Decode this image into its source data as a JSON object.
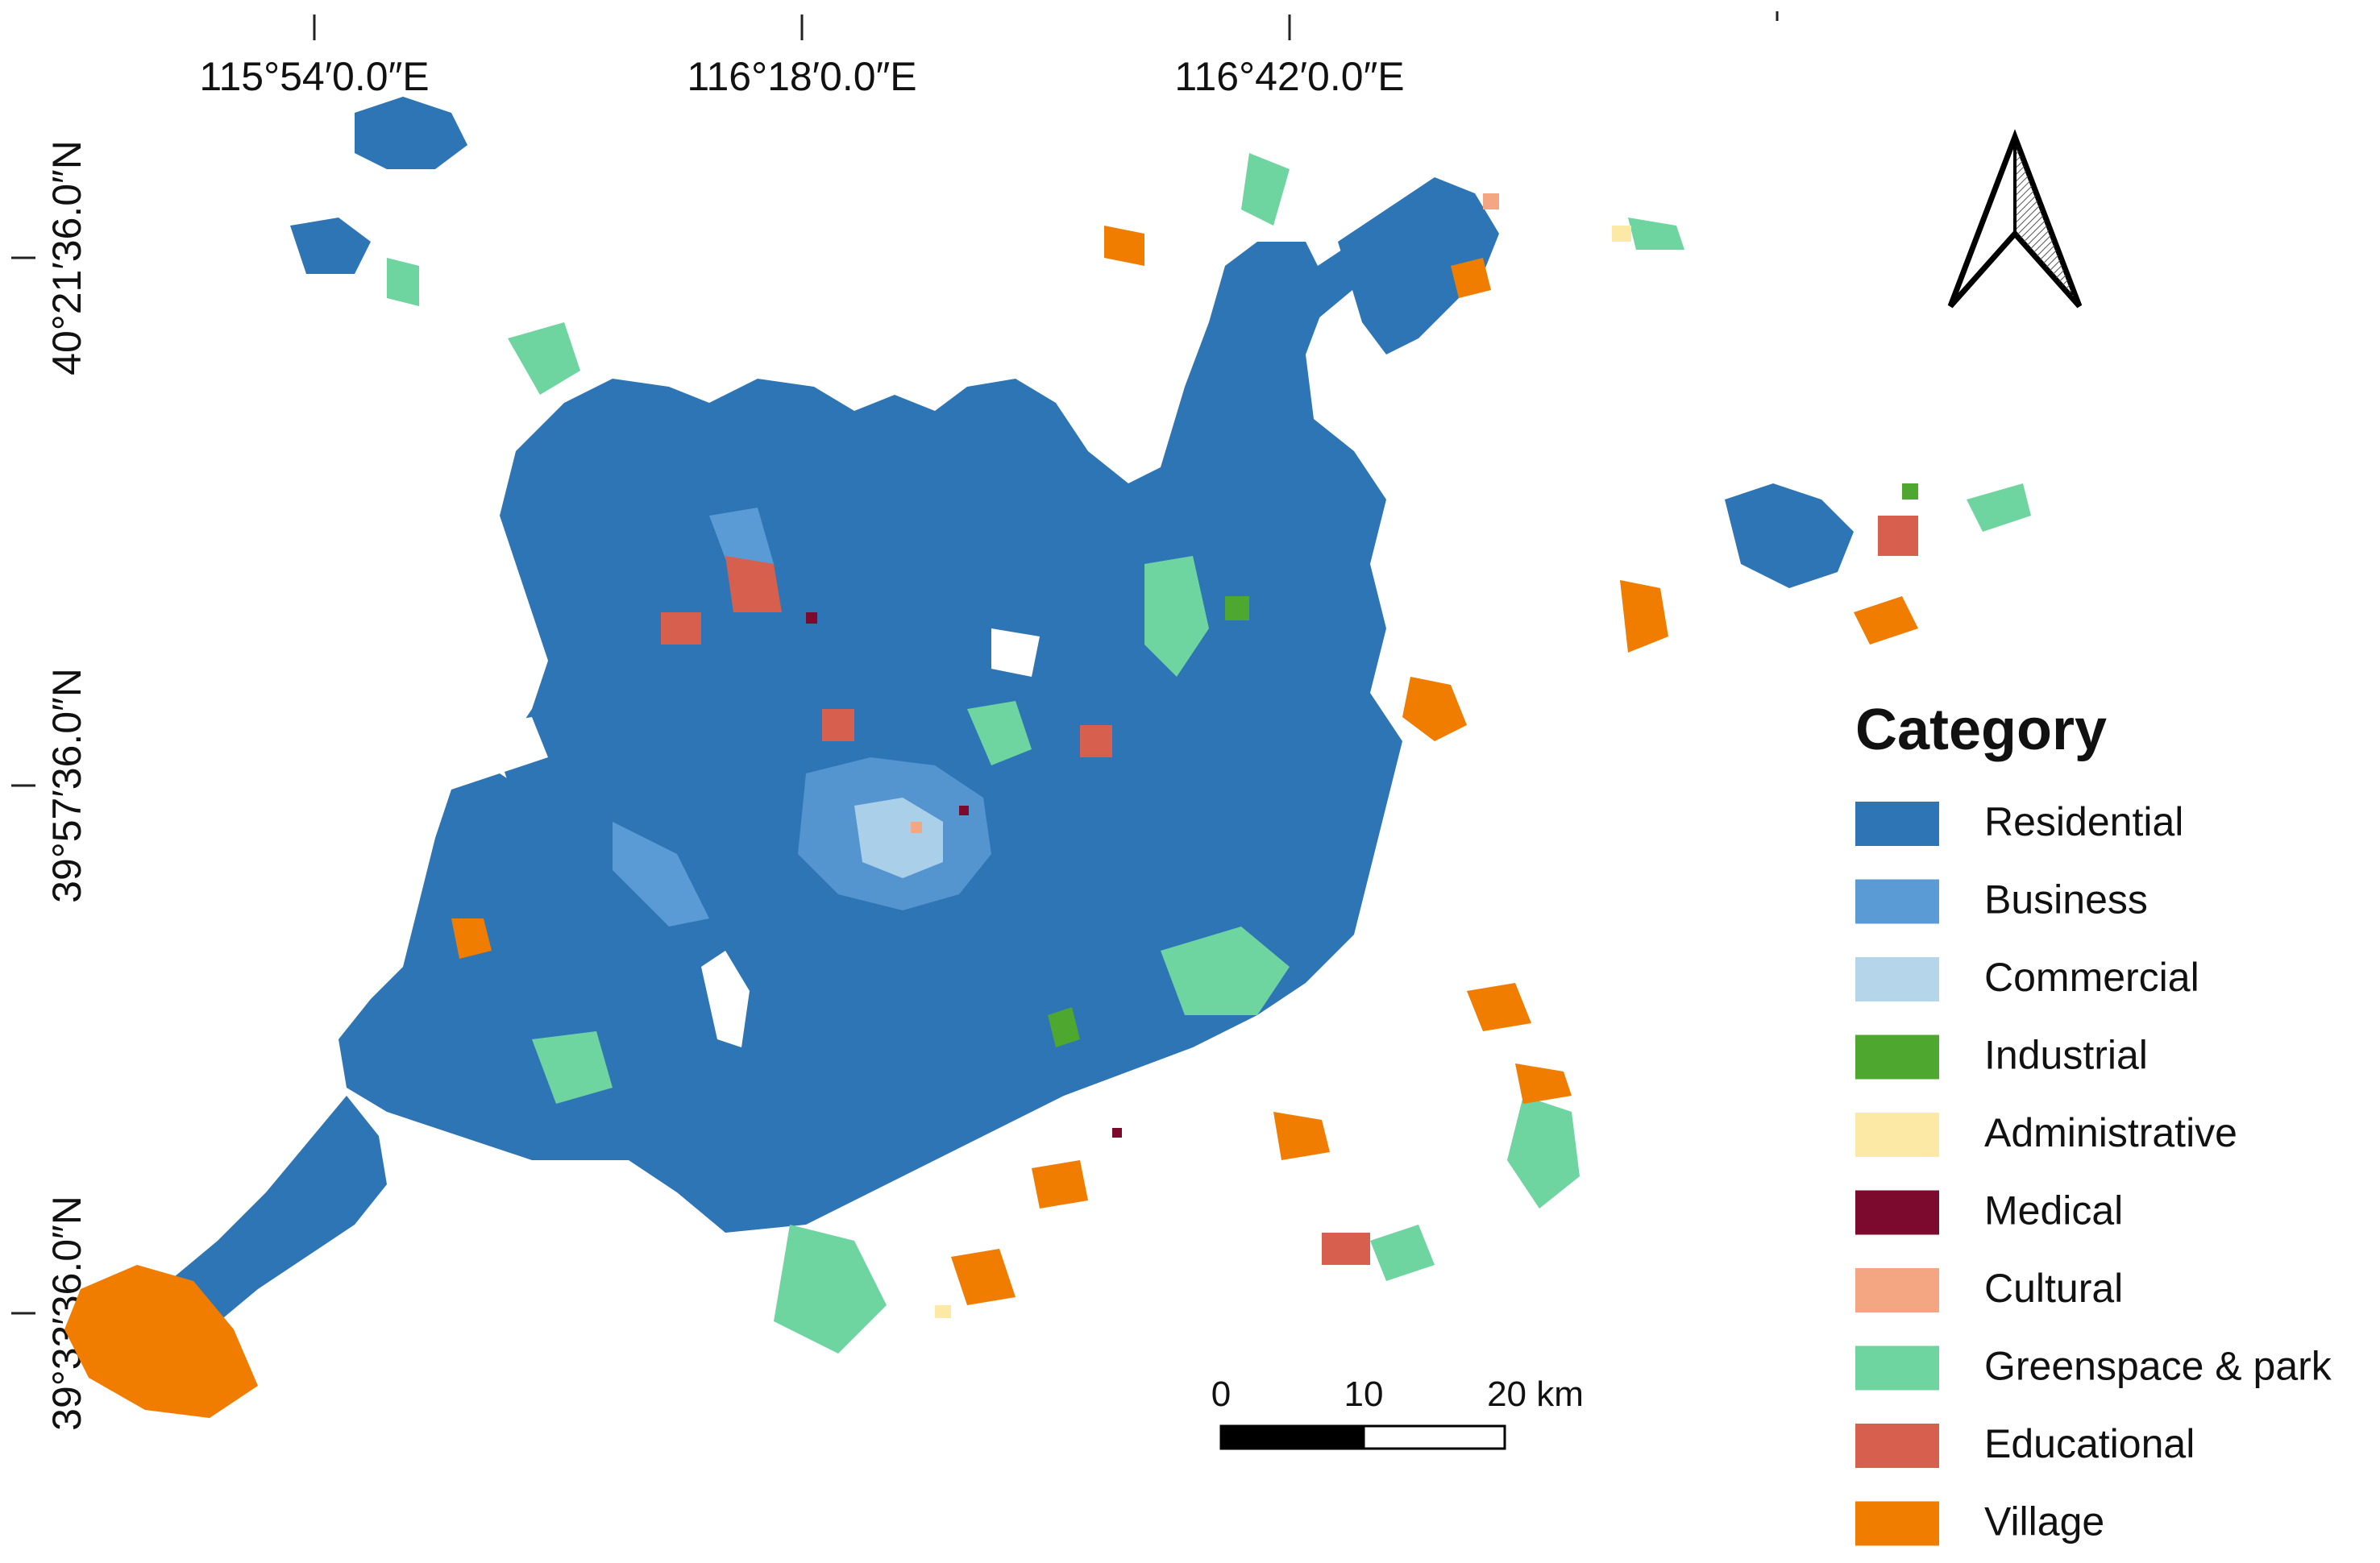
{
  "grid": {
    "longitude_labels": [
      "115°54′0.0″E",
      "116°18′0.0″E",
      "116°42′0.0″E"
    ],
    "latitude_labels": [
      "40°21′36.0″N",
      "39°57′36.0″N",
      "39°33′36.0″N"
    ]
  },
  "legend": {
    "title": "Category",
    "items": [
      {
        "label": "Residential",
        "color": "#2E75B6"
      },
      {
        "label": "Business",
        "color": "#5B9BD5"
      },
      {
        "label": "Commercial",
        "color": "#B4D5EA"
      },
      {
        "label": "Industrial",
        "color": "#4EA72E"
      },
      {
        "label": "Administrative",
        "color": "#FDE9A6"
      },
      {
        "label": "Medical",
        "color": "#7B0A2E"
      },
      {
        "label": "Cultural",
        "color": "#F4A582"
      },
      {
        "label": "Greenspace & park",
        "color": "#6ED4A0"
      },
      {
        "label": "Educational",
        "color": "#D6604D"
      },
      {
        "label": "Village",
        "color": "#F07C00"
      }
    ]
  },
  "scale_bar": {
    "labels": [
      "0",
      "10",
      "20 km"
    ]
  },
  "north_arrow": {
    "icon": "north-arrow-icon"
  }
}
